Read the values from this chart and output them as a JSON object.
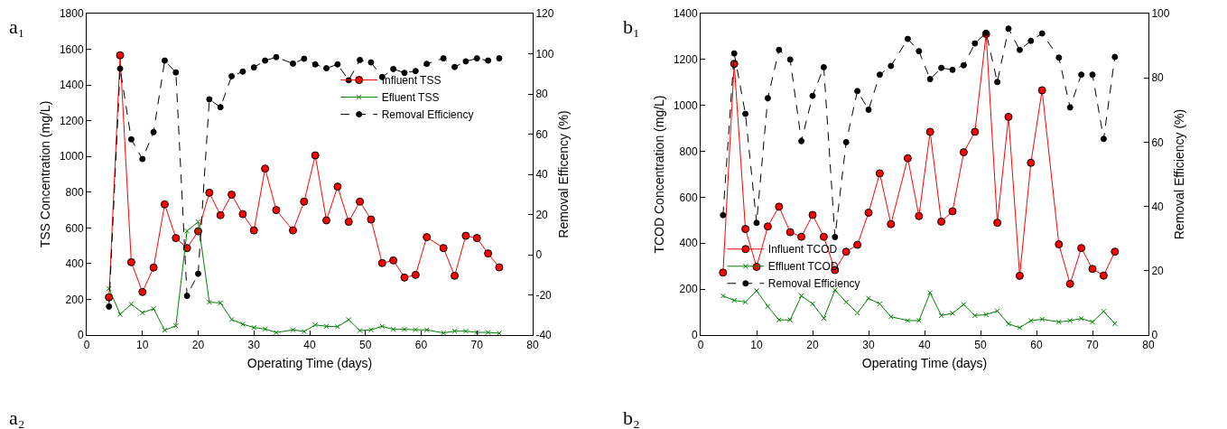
{
  "chart_data": [
    {
      "type": "line",
      "xlabel": "Operating Time (days)",
      "ylabel": "TSS Concentration (mg/L)",
      "y2label": "Removal Efficency (%)",
      "annotations": [
        "a₁",
        "a₂"
      ],
      "xlim": [
        0,
        80
      ],
      "xticks": [
        0,
        10,
        20,
        30,
        40,
        50,
        60,
        70,
        80
      ],
      "ylim": [
        0,
        1800
      ],
      "yticks": [
        0,
        200,
        400,
        600,
        800,
        1000,
        1200,
        1400,
        1600,
        1800
      ],
      "y2lim": [
        -40,
        120
      ],
      "y2ticks": [
        -40,
        -20,
        0,
        20,
        40,
        60,
        80,
        100,
        120
      ],
      "legend": "right",
      "x": [
        4,
        6,
        8,
        10,
        12,
        14,
        16,
        18,
        20,
        22,
        24,
        26,
        28,
        30,
        32,
        34,
        37,
        39,
        41,
        43,
        45,
        47,
        49,
        51,
        53,
        55,
        57,
        59,
        61,
        64,
        66,
        68,
        70,
        72,
        74
      ],
      "series": [
        {
          "name": "Influent TSS",
          "color": "#ff0000",
          "marker": "circle",
          "line_style": "solid",
          "values": [
            211,
            1566,
            408,
            241,
            378,
            732,
            543,
            487,
            581,
            797,
            671,
            786,
            677,
            586,
            932,
            700,
            586,
            747,
            1006,
            642,
            831,
            634,
            747,
            647,
            403,
            418,
            322,
            337,
            548,
            487,
            332,
            556,
            543,
            457,
            379
          ]
        },
        {
          "name": "Efluent TSS",
          "color": "#008000",
          "marker": "cross",
          "line_style": "solid",
          "values": [
            261,
            116,
            173,
            125,
            148,
            27,
            52,
            583,
            634,
            184,
            180,
            87,
            61,
            42,
            34,
            14,
            29,
            20,
            57,
            49,
            47,
            86,
            25,
            29,
            49,
            32,
            32,
            30,
            29,
            12,
            22,
            22,
            15,
            15,
            10
          ]
        },
        {
          "name": "Removal Efficiency",
          "color": "#000000",
          "marker": "circle",
          "line_style": "dashed",
          "axis": "y2",
          "values": [
            -25.8,
            92.6,
            57.4,
            47.6,
            61.0,
            96.6,
            90.7,
            -20.5,
            -9.5,
            77.3,
            73.4,
            88.8,
            91.1,
            93.2,
            96.6,
            98.3,
            95.1,
            97.5,
            94.7,
            92.8,
            94.7,
            86.8,
            96.9,
            95.7,
            88.4,
            92.4,
            90.5,
            91.4,
            95.0,
            97.7,
            93.4,
            96.2,
            97.7,
            96.6,
            97.7
          ]
        }
      ]
    },
    {
      "type": "line",
      "xlabel": "Operating Time (days)",
      "ylabel": "TCOD Concentration (mg/L)",
      "y2label": "Removal Efficiency (%)",
      "annotations": [
        "b₁",
        "b₂"
      ],
      "xlim": [
        0,
        80
      ],
      "xticks": [
        0,
        10,
        20,
        30,
        40,
        50,
        60,
        70,
        80
      ],
      "ylim": [
        0,
        1400
      ],
      "yticks": [
        0,
        200,
        400,
        600,
        800,
        1000,
        1200,
        1400
      ],
      "y2lim": [
        0,
        100
      ],
      "y2ticks": [
        0,
        20,
        40,
        60,
        80,
        100
      ],
      "legend": "bottom left",
      "x": [
        4,
        6,
        8,
        10,
        12,
        14,
        16,
        18,
        20,
        22,
        24,
        26,
        28,
        30,
        32,
        34,
        37,
        39,
        41,
        43,
        45,
        47,
        49,
        51,
        53,
        55,
        57,
        59,
        61,
        64,
        66,
        68,
        70,
        72,
        74
      ],
      "series": [
        {
          "name": "Influent TCOD",
          "color": "#ff0000",
          "marker": "circle",
          "line_style": "solid",
          "values": [
            272,
            1181,
            462,
            297,
            473,
            559,
            448,
            428,
            523,
            428,
            283,
            363,
            393,
            533,
            704,
            483,
            770,
            518,
            885,
            494,
            539,
            796,
            885,
            1311,
            489,
            950,
            258,
            750,
            1066,
            395,
            223,
            379,
            288,
            259,
            363
          ]
        },
        {
          "name": "Effluent TCOD",
          "color": "#008000",
          "marker": "cross",
          "line_style": "solid",
          "values": [
            171,
            151,
            144,
            193,
            125,
            66,
            66,
            171,
            136,
            73,
            196,
            144,
            96,
            160,
            136,
            80,
            63,
            63,
            184,
            85,
            95,
            133,
            85,
            89,
            105,
            49,
            32,
            63,
            69,
            57,
            63,
            72,
            57,
            103,
            50
          ]
        },
        {
          "name": "Removal Efficiency",
          "color": "#000000",
          "marker": "circle",
          "line_style": "dashed",
          "axis": "y2",
          "values": [
            37.3,
            87.6,
            68.8,
            34.9,
            73.7,
            88.7,
            85.7,
            60.3,
            74.4,
            83.3,
            30.5,
            60.0,
            75.9,
            70.1,
            81.0,
            83.7,
            92.1,
            88.3,
            79.6,
            83.1,
            82.5,
            83.9,
            90.7,
            94.0,
            78.7,
            95.3,
            88.7,
            91.5,
            93.8,
            86.3,
            70.8,
            81.0,
            81.0,
            61.0,
            86.5
          ]
        }
      ]
    }
  ]
}
